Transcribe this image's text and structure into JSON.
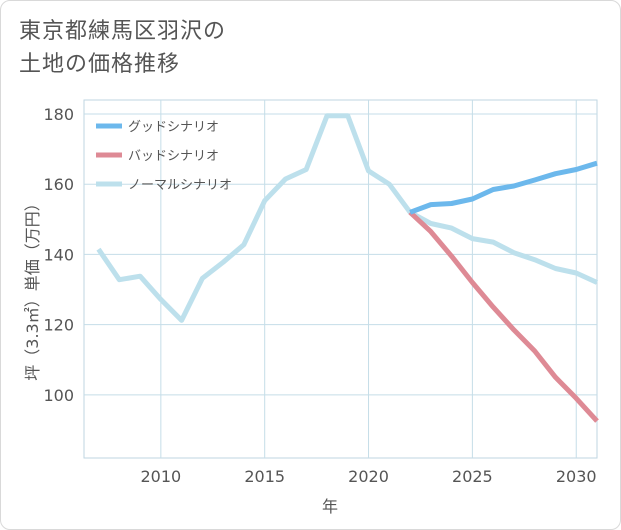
{
  "title": {
    "line1": "東京都練馬区羽沢の",
    "line2": "土地の価格推移"
  },
  "chart_data": {
    "type": "line",
    "xlabel": "年",
    "ylabel": "坪（3.3㎡）単価（万円）",
    "xlim": [
      2006.3,
      2031
    ],
    "ylim": [
      82,
      184
    ],
    "xticks": [
      2010,
      2015,
      2020,
      2025,
      2030
    ],
    "yticks": [
      100,
      120,
      140,
      160,
      180
    ],
    "grid": true,
    "legend_position": "top-left",
    "series": [
      {
        "name": "グッドシナリオ",
        "color": "#6cb8ec",
        "x": [
          2022,
          2023,
          2024,
          2025,
          2026,
          2027,
          2028,
          2029,
          2030,
          2031
        ],
        "y": [
          152,
          154.2,
          154.5,
          155.8,
          158.5,
          159.5,
          161.2,
          163,
          164.2,
          166
        ]
      },
      {
        "name": "バッドシナリオ",
        "color": "#de8a95",
        "x": [
          2022,
          2023,
          2024,
          2025,
          2026,
          2027,
          2028,
          2029,
          2030,
          2031
        ],
        "y": [
          152,
          146.5,
          139.5,
          132,
          125,
          118.5,
          112.5,
          105,
          99,
          92.5
        ]
      },
      {
        "name": "ノーマルシナリオ",
        "color": "#bde0ec",
        "x": [
          2007,
          2008,
          2009,
          2010,
          2011,
          2012,
          2013,
          2014,
          2015,
          2016,
          2017,
          2018,
          2019,
          2020,
          2021,
          2022,
          2023,
          2024,
          2025,
          2026,
          2027,
          2028,
          2029,
          2030,
          2031
        ],
        "y": [
          141.5,
          132.8,
          133.8,
          127.2,
          121.2,
          133.2,
          137.8,
          142.8,
          155.3,
          161.5,
          164.2,
          179.5,
          179.5,
          163.8,
          160,
          152,
          148.8,
          147.5,
          144.5,
          143.5,
          140.5,
          138.5,
          136,
          134.7,
          132
        ]
      }
    ]
  }
}
